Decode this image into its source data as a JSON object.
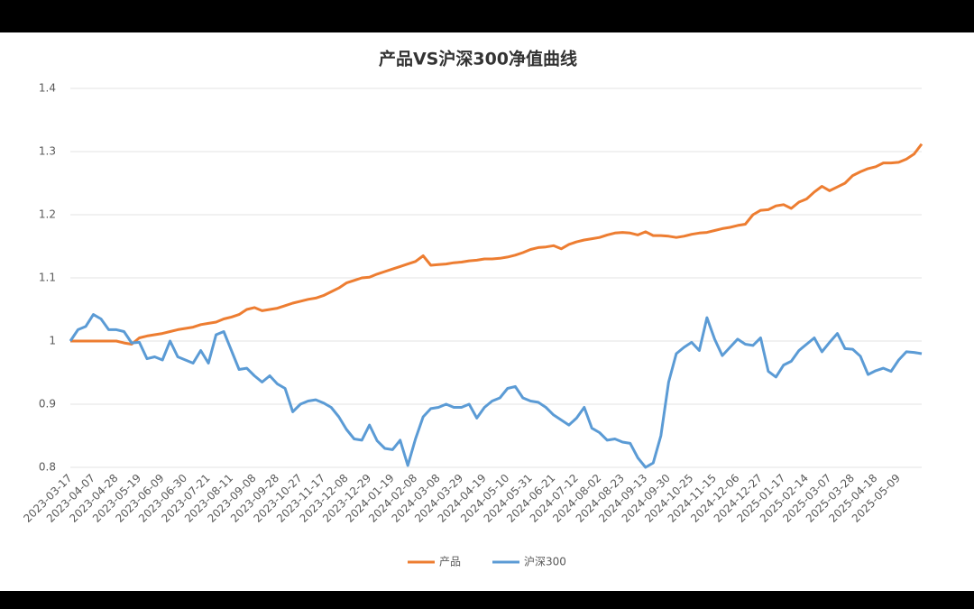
{
  "chart_data": {
    "type": "line",
    "title": "产品VS沪深300净值曲线",
    "categories": [
      "2023-03-17",
      null,
      null,
      "2023-04-07",
      null,
      null,
      "2023-04-28",
      null,
      null,
      "2023-05-19",
      null,
      null,
      "2023-06-09",
      null,
      null,
      "2023-06-30",
      null,
      null,
      "2023-07-21",
      null,
      null,
      "2023-08-11",
      null,
      null,
      "2023-09-08",
      null,
      null,
      "2023-09-28",
      null,
      null,
      "2023-10-27",
      null,
      null,
      "2023-11-17",
      null,
      null,
      "2023-12-08",
      null,
      null,
      "2023-12-29",
      null,
      null,
      "2024-01-19",
      null,
      null,
      "2024-02-08",
      null,
      null,
      "2024-03-08",
      null,
      null,
      "2024-03-29",
      null,
      null,
      "2024-04-19",
      null,
      null,
      "2024-05-10",
      null,
      null,
      "2024-05-31",
      null,
      null,
      "2024-06-21",
      null,
      null,
      "2024-07-12",
      null,
      null,
      "2024-08-02",
      null,
      null,
      "2024-08-23",
      null,
      null,
      "2024-09-13",
      null,
      null,
      "2024-09-30",
      null,
      null,
      "2024-10-25",
      null,
      null,
      "2024-11-15",
      null,
      null,
      "2024-12-06",
      null,
      null,
      "2024-12-27",
      null,
      null,
      "2025-01-17",
      null,
      null,
      "2025-02-14",
      null,
      null,
      "2025-03-07",
      null,
      null,
      "2025-03-28",
      null,
      null,
      "2025-04-18",
      null,
      null,
      "2025-05-09",
      null,
      null,
      null
    ],
    "series": [
      {
        "name": "产品",
        "color": "#ed7d31",
        "values": [
          1,
          1,
          1,
          1,
          1,
          1,
          1,
          0.997,
          0.995,
          1.005,
          1.008,
          1.01,
          1.012,
          1.015,
          1.018,
          1.02,
          1.022,
          1.026,
          1.028,
          1.03,
          1.035,
          1.038,
          1.042,
          1.05,
          1.053,
          1.048,
          1.05,
          1.052,
          1.056,
          1.06,
          1.063,
          1.066,
          1.068,
          1.072,
          1.078,
          1.084,
          1.092,
          1.096,
          1.1,
          1.101,
          1.106,
          1.11,
          1.114,
          1.118,
          1.122,
          1.126,
          1.135,
          1.12,
          1.121,
          1.122,
          1.124,
          1.125,
          1.127,
          1.128,
          1.13,
          1.13,
          1.131,
          1.133,
          1.136,
          1.14,
          1.145,
          1.148,
          1.149,
          1.151,
          1.146,
          1.153,
          1.157,
          1.16,
          1.162,
          1.164,
          1.168,
          1.171,
          1.172,
          1.171,
          1.168,
          1.173,
          1.167,
          1.167,
          1.166,
          1.164,
          1.166,
          1.169,
          1.171,
          1.172,
          1.175,
          1.178,
          1.18,
          1.183,
          1.185,
          1.2,
          1.207,
          1.208,
          1.214,
          1.216,
          1.21,
          1.22,
          1.225,
          1.236,
          1.245,
          1.238,
          1.244,
          1.25,
          1.262,
          1.268,
          1.273,
          1.276,
          1.282,
          1.282,
          1.283,
          1.288,
          1.296,
          1.312
        ]
      },
      {
        "name": "沪深300",
        "color": "#5b9bd5",
        "values": [
          1,
          1.018,
          1.023,
          1.042,
          1.035,
          1.018,
          1.018,
          1.015,
          0.997,
          0.998,
          0.972,
          0.975,
          0.97,
          1,
          0.975,
          0.97,
          0.965,
          0.985,
          0.965,
          1.01,
          1.015,
          0.985,
          0.955,
          0.957,
          0.945,
          0.935,
          0.945,
          0.932,
          0.925,
          0.888,
          0.9,
          0.905,
          0.907,
          0.902,
          0.895,
          0.88,
          0.86,
          0.845,
          0.843,
          0.867,
          0.842,
          0.83,
          0.828,
          0.843,
          0.803,
          0.845,
          0.88,
          0.893,
          0.895,
          0.9,
          0.895,
          0.895,
          0.9,
          0.878,
          0.895,
          0.905,
          0.91,
          0.925,
          0.928,
          0.91,
          0.905,
          0.903,
          0.895,
          0.883,
          0.875,
          0.867,
          0.878,
          0.895,
          0.862,
          0.855,
          0.843,
          0.845,
          0.84,
          0.838,
          0.815,
          0.8,
          0.807,
          0.85,
          0.935,
          0.98,
          0.99,
          0.998,
          0.985,
          1.037,
          1.003,
          0.977,
          0.99,
          1.003,
          0.995,
          0.993,
          1.005,
          0.952,
          0.943,
          0.962,
          0.968,
          0.985,
          0.995,
          1.005,
          0.983,
          0.998,
          1.012,
          0.988,
          0.987,
          0.976,
          0.947,
          0.953,
          0.957,
          0.952,
          0.97,
          0.983,
          0.982,
          0.98
        ]
      }
    ],
    "ylim": [
      0.8,
      1.4
    ],
    "yticks": [
      0.8,
      0.9,
      1,
      1.1,
      1.2,
      1.3,
      1.4
    ],
    "grid": true,
    "legend": "bottom"
  }
}
